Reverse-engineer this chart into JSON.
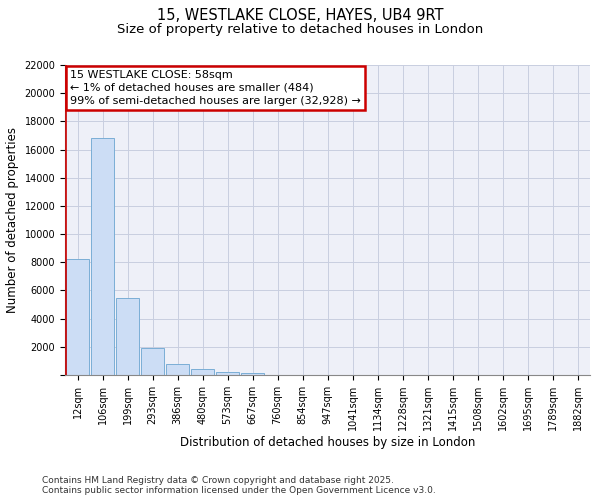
{
  "title": "15, WESTLAKE CLOSE, HAYES, UB4 9RT",
  "subtitle": "Size of property relative to detached houses in London",
  "xlabel": "Distribution of detached houses by size in London",
  "ylabel": "Number of detached properties",
  "categories": [
    "12sqm",
    "106sqm",
    "199sqm",
    "293sqm",
    "386sqm",
    "480sqm",
    "573sqm",
    "667sqm",
    "760sqm",
    "854sqm",
    "947sqm",
    "1041sqm",
    "1134sqm",
    "1228sqm",
    "1321sqm",
    "1415sqm",
    "1508sqm",
    "1602sqm",
    "1695sqm",
    "1789sqm",
    "1882sqm"
  ],
  "values": [
    8200,
    16800,
    5450,
    1900,
    780,
    420,
    230,
    140,
    0,
    0,
    0,
    0,
    0,
    0,
    0,
    0,
    0,
    0,
    0,
    0,
    0
  ],
  "bar_color": "#ccddf5",
  "bar_edge_color": "#7aaed6",
  "grid_color": "#c8cee0",
  "background_color": "#eef0f8",
  "annotation_line1": "15 WESTLAKE CLOSE: 58sqm",
  "annotation_line2": "← 1% of detached houses are smaller (484)",
  "annotation_line3": "99% of semi-detached houses are larger (32,928) →",
  "annotation_box_color": "#ffffff",
  "annotation_box_edge_color": "#cc0000",
  "vline_color": "#cc0000",
  "ylim": [
    0,
    22000
  ],
  "yticks": [
    0,
    2000,
    4000,
    6000,
    8000,
    10000,
    12000,
    14000,
    16000,
    18000,
    20000,
    22000
  ],
  "footer": "Contains HM Land Registry data © Crown copyright and database right 2025.\nContains public sector information licensed under the Open Government Licence v3.0.",
  "title_fontsize": 10.5,
  "subtitle_fontsize": 9.5,
  "tick_fontsize": 7,
  "ylabel_fontsize": 8.5,
  "xlabel_fontsize": 8.5,
  "footer_fontsize": 6.5,
  "annotation_fontsize": 8
}
